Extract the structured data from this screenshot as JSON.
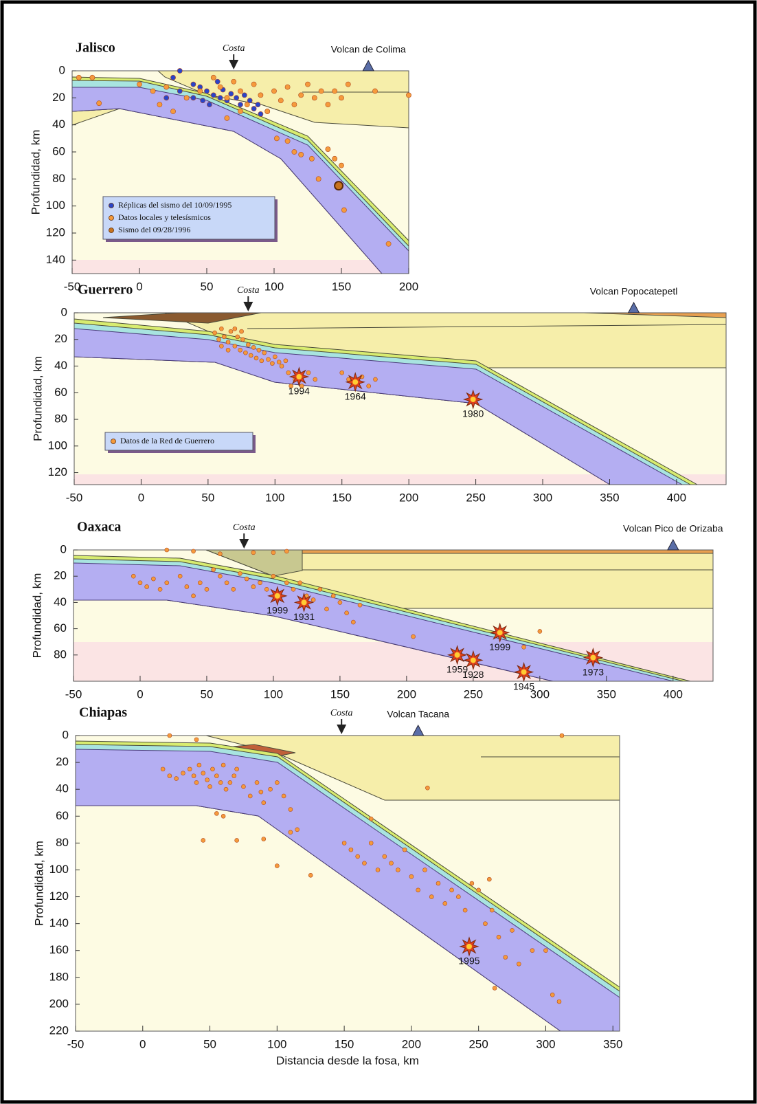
{
  "chart_data": [
    {
      "type": "scatter",
      "title": "Jalisco",
      "ylabel": "Profundidad, km",
      "xlim": [
        -50,
        200
      ],
      "ylim": [
        0,
        150
      ],
      "xticks": [
        -50,
        0,
        50,
        100,
        150,
        200
      ],
      "yticks": [
        0,
        20,
        40,
        60,
        80,
        100,
        120,
        140
      ],
      "invert_y": true,
      "legend": "lower left",
      "coast": {
        "label": "Costa",
        "x": 70
      },
      "volcano": {
        "label": "Volcan de Colima",
        "x": 170
      },
      "series": [
        {
          "name": "Réplicas del sismo del 10/09/1995",
          "color": "#2a44c8",
          "x": [
            25,
            30,
            40,
            45,
            50,
            55,
            58,
            62,
            65,
            68,
            72,
            75,
            78,
            82,
            85,
            88,
            90,
            95,
            60,
            52,
            47,
            40,
            30,
            20
          ],
          "values": [
            5,
            0,
            10,
            12,
            15,
            18,
            8,
            14,
            22,
            17,
            20,
            25,
            18,
            22,
            28,
            25,
            32,
            30,
            20,
            25,
            22,
            20,
            15,
            20
          ]
        },
        {
          "name": "Datos locales y telesísmicos",
          "color": "#f59a3c",
          "x": [
            -45,
            -35,
            -30,
            0,
            10,
            15,
            20,
            25,
            35,
            45,
            55,
            60,
            65,
            70,
            75,
            80,
            85,
            90,
            95,
            100,
            105,
            110,
            115,
            120,
            125,
            130,
            135,
            140,
            145,
            150,
            155,
            175,
            200,
            102,
            110,
            115,
            120,
            128,
            133,
            140,
            145,
            150,
            152,
            185,
            65,
            75
          ],
          "values": [
            5,
            5,
            24,
            10,
            15,
            25,
            12,
            30,
            20,
            15,
            5,
            12,
            20,
            8,
            15,
            25,
            10,
            18,
            30,
            15,
            22,
            12,
            25,
            18,
            10,
            20,
            15,
            25,
            15,
            20,
            10,
            15,
            18,
            50,
            52,
            60,
            62,
            65,
            80,
            58,
            65,
            70,
            103,
            128,
            35,
            30
          ]
        },
        {
          "name": "Sismo del 09/28/1996",
          "color": "#c8741e",
          "x": [
            148
          ],
          "values": [
            85
          ]
        }
      ]
    },
    {
      "type": "scatter",
      "title": "Guerrero",
      "ylabel": "Profundidad, km",
      "xlim": [
        -50,
        437
      ],
      "ylim": [
        0,
        129
      ],
      "xticks": [
        -50,
        0,
        50,
        100,
        150,
        200,
        250,
        300,
        350,
        400
      ],
      "yticks": [
        0,
        20,
        40,
        60,
        80,
        100,
        120
      ],
      "invert_y": true,
      "legend": "lower left",
      "coast": {
        "label": "Costa",
        "x": 80
      },
      "volcano": {
        "label": "Volcan Popocatepetl",
        "x": 368
      },
      "series": [
        {
          "name": "Datos de la Red de Guerrero",
          "color": "#f59a3c",
          "x": [
            55,
            58,
            60,
            62,
            65,
            67,
            70,
            72,
            74,
            76,
            78,
            80,
            82,
            84,
            86,
            88,
            90,
            92,
            95,
            98,
            100,
            103,
            105,
            108,
            60,
            65,
            70,
            75,
            110,
            115,
            120,
            125,
            130,
            150,
            155,
            165,
            170,
            175,
            112
          ],
          "values": [
            15,
            20,
            12,
            18,
            22,
            14,
            25,
            18,
            28,
            20,
            30,
            24,
            32,
            26,
            34,
            28,
            36,
            30,
            35,
            38,
            33,
            37,
            40,
            36,
            25,
            28,
            12,
            14,
            45,
            50,
            55,
            45,
            50,
            45,
            50,
            48,
            55,
            50,
            55
          ]
        }
      ],
      "events": [
        {
          "label": "1994",
          "x": 118,
          "y": 48
        },
        {
          "label": "1964",
          "x": 160,
          "y": 52
        },
        {
          "label": "1980",
          "x": 248,
          "y": 65
        }
      ]
    },
    {
      "type": "scatter",
      "title": "Oaxaca",
      "ylabel": "Profundidad, km",
      "xlim": [
        -50,
        430
      ],
      "ylim": [
        0,
        100
      ],
      "xticks": [
        -50,
        0,
        50,
        100,
        150,
        200,
        250,
        300,
        350,
        400
      ],
      "yticks": [
        0,
        20,
        40,
        60,
        80
      ],
      "invert_y": true,
      "coast": {
        "label": "Costa",
        "x": 78
      },
      "volcano": {
        "label": "Volcan Pico de Orizaba",
        "x": 400
      },
      "series": [
        {
          "color": "#f59a3c",
          "x": [
            20,
            40,
            60,
            85,
            100,
            110,
            -5,
            0,
            5,
            10,
            15,
            20,
            30,
            35,
            40,
            45,
            50,
            55,
            60,
            65,
            70,
            75,
            80,
            85,
            90,
            95,
            100,
            110,
            115,
            120,
            125,
            130,
            135,
            140,
            145,
            150,
            155,
            160,
            165,
            205,
            288,
            300
          ],
          "values": [
            0,
            1,
            3,
            2,
            2,
            1,
            20,
            25,
            28,
            22,
            30,
            25,
            20,
            28,
            35,
            25,
            30,
            15,
            20,
            25,
            30,
            18,
            22,
            28,
            25,
            30,
            20,
            25,
            30,
            25,
            35,
            38,
            30,
            45,
            35,
            40,
            48,
            55,
            42,
            66,
            74,
            62
          ]
        }
      ],
      "events": [
        {
          "label": "1999",
          "x": 103,
          "y": 35
        },
        {
          "label": "1931",
          "x": 123,
          "y": 40
        },
        {
          "label": "1959",
          "x": 238,
          "y": 80
        },
        {
          "label": "1928",
          "x": 250,
          "y": 84
        },
        {
          "label": "1999",
          "x": 270,
          "y": 63
        },
        {
          "label": "1945",
          "x": 288,
          "y": 93
        },
        {
          "label": "1973",
          "x": 340,
          "y": 82
        }
      ]
    },
    {
      "type": "scatter",
      "title": "Chiapas",
      "ylabel": "Profundidad, km",
      "xlabel": "Distancia desde la fosa, km",
      "xlim": [
        -50,
        355
      ],
      "ylim": [
        0,
        220
      ],
      "xticks": [
        -50,
        0,
        50,
        100,
        150,
        200,
        250,
        300,
        350
      ],
      "yticks": [
        0,
        20,
        40,
        60,
        80,
        100,
        120,
        140,
        160,
        180,
        200,
        220
      ],
      "invert_y": true,
      "coast": {
        "label": "Costa",
        "x": 148
      },
      "volcano": {
        "label": "Volcan Tacana",
        "x": 205
      },
      "series": [
        {
          "color": "#f59a3c",
          "x": [
            15,
            20,
            25,
            30,
            35,
            38,
            40,
            42,
            45,
            48,
            50,
            52,
            55,
            58,
            60,
            62,
            65,
            68,
            70,
            75,
            80,
            85,
            88,
            90,
            95,
            100,
            105,
            110,
            115,
            45,
            60,
            70,
            90,
            100,
            125,
            55,
            110,
            150,
            155,
            160,
            165,
            170,
            175,
            180,
            185,
            190,
            195,
            200,
            205,
            210,
            215,
            220,
            225,
            230,
            235,
            240,
            245,
            250,
            255,
            260,
            265,
            270,
            275,
            280,
            290,
            300,
            305,
            310,
            170,
            258,
            262,
            212,
            312,
            20,
            40
          ],
          "values": [
            25,
            30,
            32,
            28,
            25,
            30,
            35,
            22,
            28,
            33,
            38,
            25,
            30,
            35,
            22,
            40,
            35,
            30,
            25,
            38,
            45,
            35,
            42,
            50,
            40,
            35,
            45,
            55,
            70,
            78,
            60,
            78,
            77,
            97,
            104,
            58,
            72,
            80,
            85,
            90,
            95,
            80,
            100,
            90,
            95,
            100,
            85,
            105,
            115,
            100,
            120,
            110,
            125,
            115,
            120,
            130,
            110,
            115,
            140,
            130,
            150,
            165,
            145,
            170,
            160,
            160,
            193,
            198,
            62,
            107,
            188,
            39,
            0,
            0,
            3
          ]
        }
      ],
      "events": [
        {
          "label": "1995",
          "x": 243,
          "y": 157
        }
      ]
    }
  ]
}
